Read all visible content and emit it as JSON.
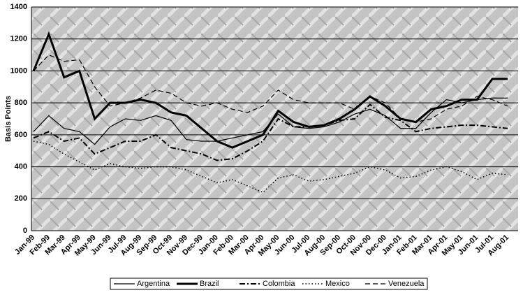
{
  "chart_data": {
    "type": "line",
    "y_label": "Basis Points",
    "categories": [
      "Jan-99",
      "Feb-99",
      "Mar-99",
      "Apr-99",
      "May-99",
      "Jun-99",
      "Jul-99",
      "Aug-99",
      "Sep-99",
      "Oct-99",
      "Nov-99",
      "Dec-99",
      "Jan-00",
      "Feb-00",
      "Mar-00",
      "Apr-00",
      "May-00",
      "Jun-00",
      "Jul-00",
      "Aug-00",
      "Sep-00",
      "Oct-00",
      "Nov-00",
      "Dec-00",
      "Jan-01",
      "Feb-01",
      "Mar-01",
      "Apr-01",
      "May-01",
      "Jun-01",
      "Jul-01",
      "Aug-01"
    ],
    "series": [
      {
        "name": "Argentina",
        "color": "#000000",
        "style": "solid",
        "values": [
          620,
          720,
          640,
          620,
          540,
          650,
          700,
          690,
          720,
          690,
          570,
          560,
          560,
          580,
          600,
          620,
          730,
          650,
          640,
          650,
          680,
          730,
          760,
          720,
          640,
          640,
          740,
          820,
          800,
          820,
          830,
          830
        ]
      },
      {
        "name": "Brazil",
        "color": "#000000",
        "style": "thick",
        "values": [
          1000,
          1230,
          960,
          1000,
          700,
          800,
          800,
          820,
          800,
          740,
          720,
          640,
          560,
          520,
          560,
          600,
          750,
          680,
          650,
          660,
          700,
          760,
          840,
          780,
          700,
          680,
          760,
          780,
          820,
          820,
          950,
          950
        ]
      },
      {
        "name": "Colombia",
        "color": "#000000",
        "style": "dash-dot",
        "values": [
          580,
          620,
          560,
          580,
          480,
          520,
          560,
          560,
          600,
          520,
          500,
          480,
          440,
          450,
          500,
          560,
          700,
          650,
          650,
          660,
          690,
          700,
          790,
          710,
          690,
          620,
          640,
          650,
          660,
          660,
          650,
          640
        ]
      },
      {
        "name": "Mexico",
        "color": "#000000",
        "style": "dot",
        "values": [
          560,
          540,
          480,
          430,
          380,
          420,
          400,
          390,
          400,
          400,
          380,
          340,
          300,
          320,
          280,
          240,
          330,
          350,
          310,
          320,
          340,
          360,
          400,
          380,
          330,
          340,
          380,
          400,
          370,
          320,
          360,
          350
        ]
      },
      {
        "name": "Venezuela",
        "color": "#000000",
        "style": "dash",
        "values": [
          1000,
          1100,
          1060,
          1070,
          900,
          780,
          800,
          830,
          880,
          860,
          800,
          780,
          800,
          760,
          740,
          780,
          880,
          820,
          800,
          800,
          800,
          760,
          840,
          800,
          700,
          680,
          700,
          760,
          780,
          840,
          820,
          780
        ]
      }
    ],
    "ylim": [
      0,
      1400
    ],
    "yticks": [
      0,
      200,
      400,
      600,
      800,
      1000,
      1200,
      1400
    ],
    "grid": true,
    "legend": "bottom"
  }
}
